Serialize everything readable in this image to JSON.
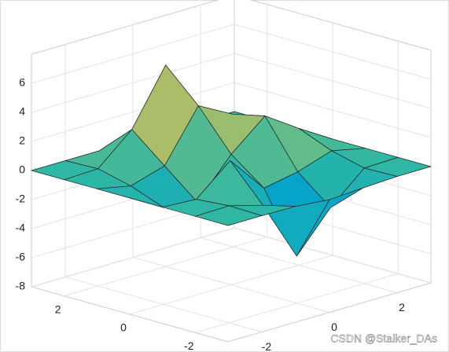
{
  "chart_data": {
    "type": "surface",
    "x": [
      -3,
      -2,
      -1,
      0,
      1,
      2,
      3
    ],
    "y": [
      -3,
      -2,
      -1,
      0,
      1,
      2,
      3
    ],
    "z": [
      [
        0,
        0,
        -0.03,
        -0.25,
        -0.11,
        0,
        0
      ],
      [
        0,
        0.05,
        -0.59,
        -4.76,
        -2.1,
        -0.06,
        0
      ],
      [
        0,
        -0.13,
        1.85,
        -0.72,
        -0.27,
        0.5,
        0
      ],
      [
        0,
        -1.33,
        -1.65,
        0.98,
        2.94,
        1.41,
        0
      ],
      [
        0,
        -0.48,
        0.23,
        3.69,
        2.44,
        0.58,
        0
      ],
      [
        0,
        0.08,
        2.1,
        5.86,
        2.21,
        0.13,
        0
      ],
      [
        0,
        0,
        0,
        0.3,
        0.11,
        0,
        0
      ]
    ],
    "xlim": [
      -3,
      3
    ],
    "ylim": [
      -3,
      3
    ],
    "zlim": [
      -8,
      8
    ],
    "xticks": [
      -2,
      0,
      2
    ],
    "yticks": [
      -2,
      0,
      2
    ],
    "zticks": [
      -8,
      -6,
      -4,
      -2,
      0,
      2,
      4,
      6
    ],
    "grid": true,
    "colormap": [
      "#352a87",
      "#0f5cdd",
      "#1481d6",
      "#06a4ca",
      "#2eb7a4",
      "#87bf77",
      "#d1bb59",
      "#fec832",
      "#f9fb0e"
    ],
    "watermark": "CSDN @Stalker_DAs"
  }
}
